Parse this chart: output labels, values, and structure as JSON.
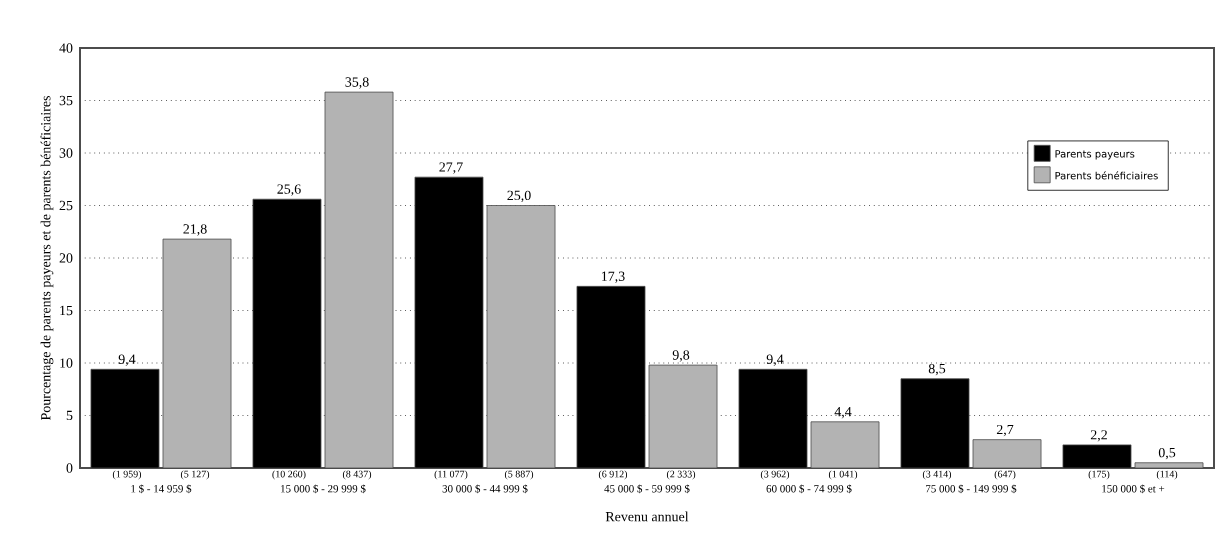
{
  "chart_data": {
    "type": "bar",
    "xlabel": "Revenu annuel",
    "ylabel": "Pourcentage de parents payeurs et de parents bénéficiaires",
    "categories": [
      "1 $ - 14 959 $",
      "15 000 $ - 29 999 $",
      "30 000 $ - 44 999 $",
      "45 000 $ - 59 999 $",
      "60 000 $ - 74 999 $",
      "75 000 $ - 149 999 $",
      "150 000 $ et +"
    ],
    "series": [
      {
        "name": "Parents payeurs",
        "color": "#000000",
        "values": [
          9.4,
          25.6,
          27.7,
          17.3,
          9.4,
          8.5,
          2.2
        ],
        "value_labels": [
          "9,4",
          "25,6",
          "27,7",
          "17,3",
          "9,4",
          "8,5",
          "2,2"
        ]
      },
      {
        "name": "Parents bénéficiaires",
        "color": "#b3b3b3",
        "values": [
          21.8,
          35.8,
          25.0,
          9.8,
          4.4,
          2.7,
          0.5
        ],
        "value_labels": [
          "21,8",
          "35,8",
          "25,0",
          "9,8",
          "4,4",
          "2,7",
          "0,5"
        ]
      }
    ],
    "annotations": [
      "(1 959)",
      "(5 127)",
      "(10 260)",
      "(8 437)",
      "(11 077)",
      "(5 887)",
      "(6 912)",
      "(2 333)",
      "(3 962)",
      "(1 041)",
      "(3 414)",
      "(647)",
      "(175)",
      "(114)"
    ],
    "ylim": [
      0,
      40
    ],
    "yticks": [
      0,
      5,
      10,
      15,
      20,
      25,
      30,
      35,
      40
    ],
    "grid": "y",
    "legend": "right"
  }
}
